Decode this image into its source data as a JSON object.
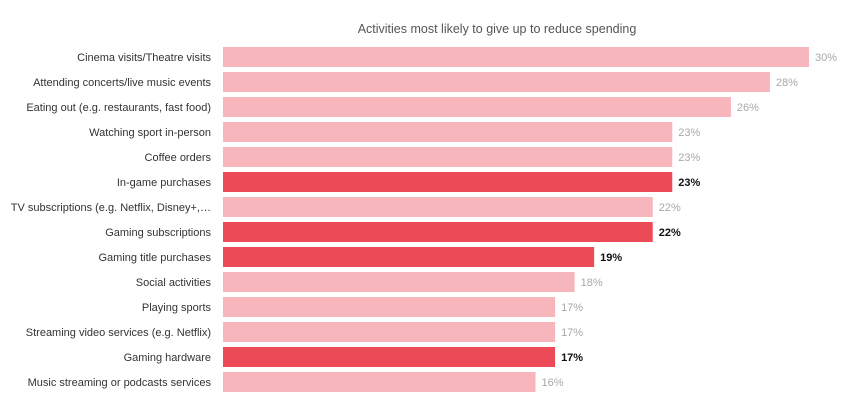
{
  "chart_data": {
    "type": "bar",
    "orientation": "horizontal",
    "title": "Activities most likely to give up to reduce spending",
    "xlabel": "",
    "ylabel": "",
    "xlim": [
      0,
      30
    ],
    "grid": false,
    "categories": [
      "Cinema visits/Theatre visits",
      "Attending concerts/live music events",
      "Eating out (e.g. restaurants, fast food)",
      "Watching sport in-person",
      "Coffee orders",
      "In-game purchases",
      "TV subscriptions (e.g. Netflix, Disney+,…",
      "Gaming subscriptions",
      "Gaming title purchases",
      "Social activities",
      "Playing sports",
      "Streaming video services (e.g. Netflix)",
      "Gaming hardware",
      "Music streaming or podcasts services"
    ],
    "values": [
      30,
      28,
      26,
      23,
      23,
      23,
      22,
      22,
      19,
      18,
      17,
      17,
      17,
      16
    ],
    "value_labels": [
      "30%",
      "28%",
      "26%",
      "23%",
      "23%",
      "23%",
      "22%",
      "22%",
      "19%",
      "18%",
      "17%",
      "17%",
      "17%",
      "16%"
    ],
    "highlighted": [
      false,
      false,
      false,
      false,
      false,
      true,
      false,
      true,
      true,
      false,
      false,
      false,
      true,
      false
    ],
    "colors": {
      "default_bar": "#f7b5bc",
      "highlight_bar": "#ec4a57"
    }
  }
}
